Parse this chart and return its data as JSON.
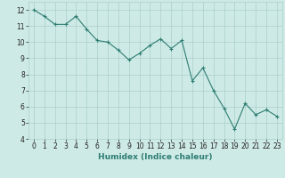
{
  "x": [
    0,
    1,
    2,
    3,
    4,
    5,
    6,
    7,
    8,
    9,
    10,
    11,
    12,
    13,
    14,
    15,
    16,
    17,
    18,
    19,
    20,
    21,
    22,
    23
  ],
  "y": [
    12.0,
    11.6,
    11.1,
    11.1,
    11.6,
    10.8,
    10.1,
    10.0,
    9.5,
    8.9,
    9.3,
    9.8,
    10.2,
    9.6,
    10.1,
    7.6,
    8.4,
    7.0,
    5.9,
    4.6,
    6.2,
    5.5,
    5.8,
    5.4
  ],
  "line_color": "#2d7d72",
  "marker": "+",
  "marker_color": "#2d7d72",
  "bg_color": "#ceeae6",
  "grid_color": "#aacfca",
  "xlabel": "Humidex (Indice chaleur)",
  "xlim": [
    -0.5,
    23.5
  ],
  "ylim": [
    4,
    12.5
  ],
  "yticks": [
    4,
    5,
    6,
    7,
    8,
    9,
    10,
    11,
    12
  ],
  "xticks": [
    0,
    1,
    2,
    3,
    4,
    5,
    6,
    7,
    8,
    9,
    10,
    11,
    12,
    13,
    14,
    15,
    16,
    17,
    18,
    19,
    20,
    21,
    22,
    23
  ],
  "xlabel_fontsize": 6.5,
  "tick_fontsize": 5.5,
  "line_width": 0.8,
  "marker_size": 3
}
